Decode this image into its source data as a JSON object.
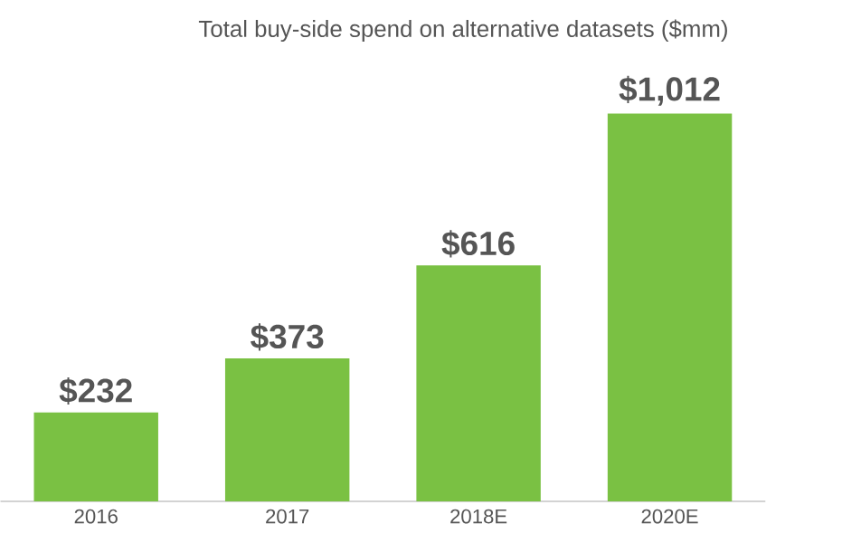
{
  "chart_data": {
    "type": "bar",
    "title": "Total buy-side spend on alternative datasets ($mm)",
    "categories": [
      "2016",
      "2017",
      "2018E",
      "2020E"
    ],
    "values": [
      232,
      373,
      616,
      1012
    ],
    "value_labels": [
      "$232",
      "$373",
      "$616",
      "$1,012"
    ],
    "color": "#7ac143",
    "tick_labels": "x"
  }
}
